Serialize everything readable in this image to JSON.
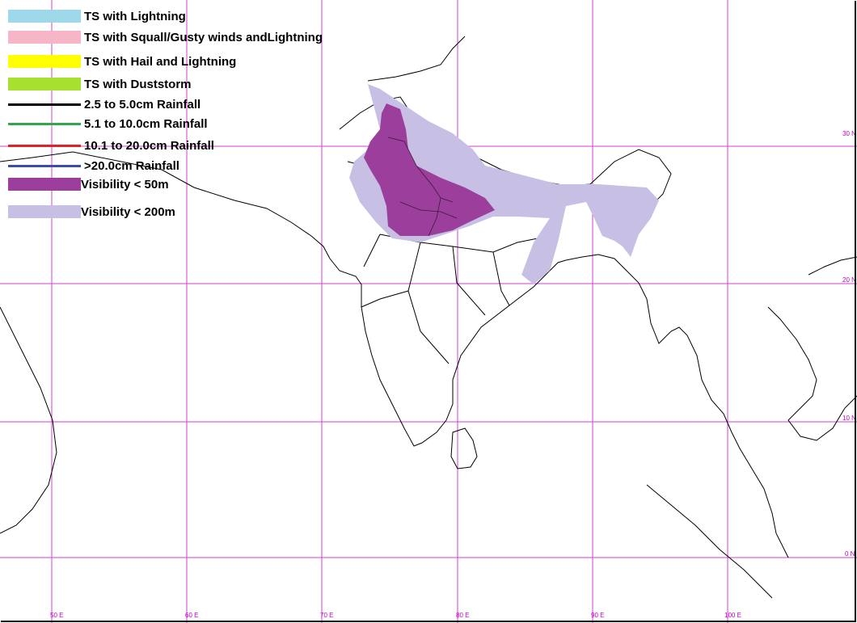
{
  "legend": {
    "ts_lightning": "TS with Lightning",
    "ts_squall": "TS with Squall/Gusty winds andLightning",
    "ts_hail": "TS with Hail and Lightning",
    "ts_duststorm": "TS with Duststorm",
    "rain_25_50": "2.5 to 5.0cm Rainfall",
    "rain_51_100": "5.1 to 10.0cm Rainfall",
    "rain_101_200": "10.1 to 20.0cm Rainfall",
    "rain_gt_200": ">20.0cm Rainfall",
    "vis_50": "Visibility < 50m",
    "vis_200": "Visibility < 200m"
  },
  "colors": {
    "ts_lightning": "#9fd8e8",
    "ts_squall": "#f7b6c8",
    "ts_hail": "#ffff00",
    "ts_duststorm": "#a8e030",
    "rain_25_50": "#000000",
    "rain_51_100": "#2ea84a",
    "rain_101_200": "#e0202a",
    "rain_gt_200": "#3a4cb0",
    "vis_50": "#9c3f9c",
    "vis_200": "#c8c0e4",
    "grid": "#d040d0"
  },
  "longitude_labels": [
    "50 E",
    "60 E",
    "70 E",
    "80 E",
    "90 E",
    "100 E"
  ],
  "latitude_labels": [
    "30 N",
    "20 N",
    "10 N",
    "0 N"
  ]
}
